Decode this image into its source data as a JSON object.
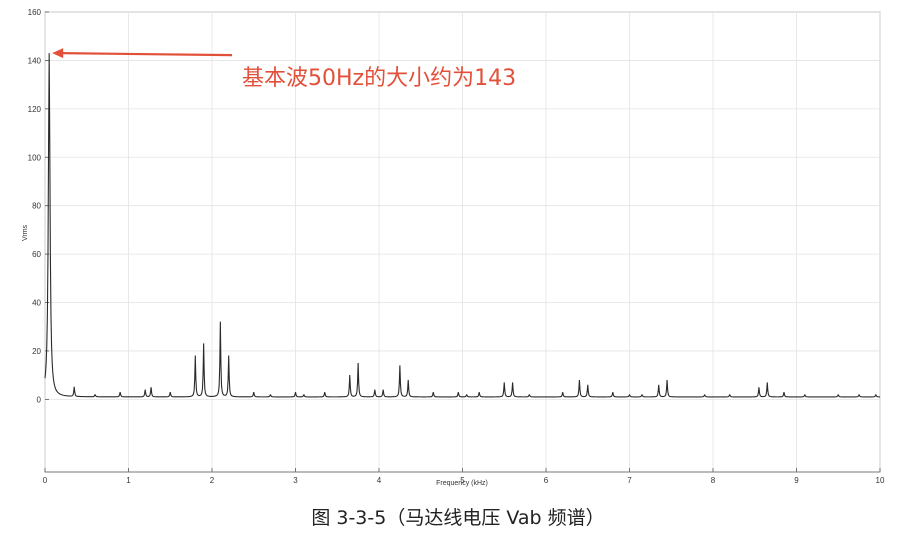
{
  "caption": "图 3-3-5（马达线电压 Vab 频谱）",
  "colors": {
    "line": "#2a2a2a",
    "grid": "#e3e3e3",
    "axis": "#555555",
    "annotation": "#e2503a"
  },
  "chart_data": {
    "type": "line",
    "xlabel": "Frequency (kHz)",
    "ylabel": "Vrms",
    "xlim": [
      0,
      10
    ],
    "ylim": [
      -30,
      160
    ],
    "xticks": [
      "0",
      "1",
      "2",
      "3",
      "4",
      "5",
      "6",
      "7",
      "8",
      "9",
      "10"
    ],
    "yticks": [
      "0",
      "20",
      "40",
      "60",
      "80",
      "100",
      "120",
      "140",
      "160"
    ],
    "grid": true,
    "baseline": 1,
    "series": [
      {
        "peaks_kHz": [
          0.05,
          0.35,
          0.6,
          0.9,
          1.2,
          1.27,
          1.5,
          1.8,
          1.9,
          2.1,
          2.2,
          2.5,
          2.7,
          3.0,
          3.1,
          3.35,
          3.65,
          3.75,
          3.95,
          4.05,
          4.25,
          4.35,
          4.65,
          4.95,
          5.05,
          5.2,
          5.5,
          5.6,
          5.8,
          6.2,
          6.4,
          6.5,
          6.8,
          7.0,
          7.15,
          7.35,
          7.45,
          7.9,
          8.2,
          8.55,
          8.65,
          8.85,
          9.1,
          9.5,
          9.75,
          9.95
        ],
        "peaks_vrms": [
          143,
          5,
          2,
          3,
          4,
          5,
          3,
          18,
          23,
          32,
          18,
          3,
          2,
          3,
          2,
          3,
          10,
          15,
          4,
          4,
          14,
          8,
          3,
          3,
          2,
          3,
          7,
          7,
          2,
          3,
          8,
          6,
          3,
          2,
          2,
          6,
          8,
          2,
          2,
          5,
          7,
          3,
          2,
          2,
          2,
          2
        ]
      }
    ],
    "annotations": [
      {
        "text": "基本波50Hz的大小约为143",
        "x": 0.05,
        "y": 143
      }
    ]
  }
}
